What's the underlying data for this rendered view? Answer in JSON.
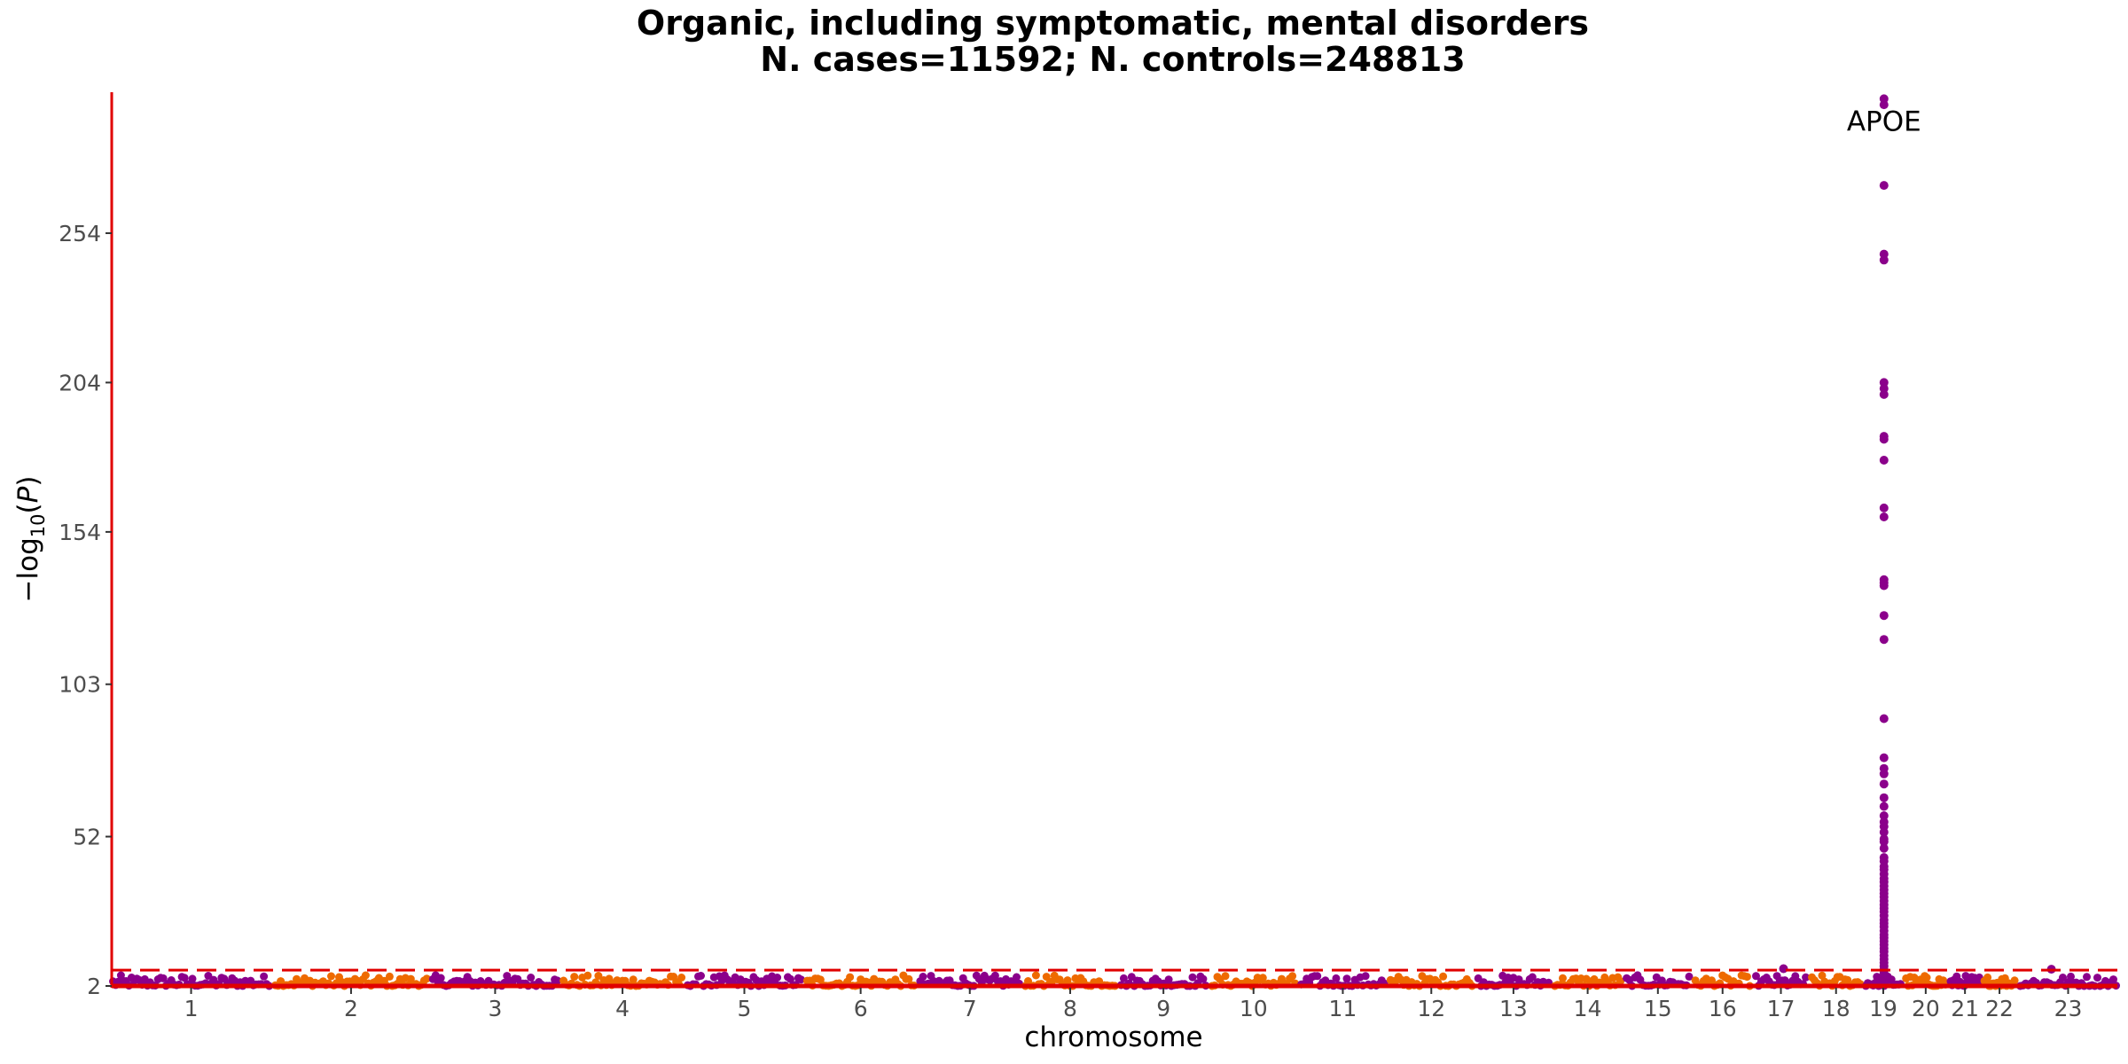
{
  "chart_data": {
    "type": "scatter",
    "subtype": "manhattan",
    "title_lines": [
      "Organic, including symptomatic, mental disorders",
      "N. cases=11592; N. controls=248813"
    ],
    "xlabel": "chromosome",
    "ylabel": "−log10(P)",
    "ylim": [
      2,
      300
    ],
    "yticks": [
      2,
      52,
      103,
      154,
      204,
      254
    ],
    "chromosomes": [
      "1",
      "2",
      "3",
      "4",
      "5",
      "6",
      "7",
      "8",
      "9",
      "10",
      "11",
      "12",
      "13",
      "14",
      "15",
      "16",
      "17",
      "18",
      "19",
      "20",
      "21",
      "22",
      "23"
    ],
    "chromosome_span": [
      1.0,
      0.97,
      0.8,
      0.76,
      0.73,
      0.69,
      0.64,
      0.58,
      0.55,
      0.54,
      0.54,
      0.53,
      0.46,
      0.43,
      0.41,
      0.36,
      0.33,
      0.32,
      0.23,
      0.26,
      0.19,
      0.2,
      0.62
    ],
    "colors": {
      "odd": "#8B008B",
      "even": "#EE6A00",
      "axis": "#E00000",
      "threshold": "#E00000"
    },
    "threshold": 7.3,
    "grid": false,
    "legend": "none",
    "peaks": [
      {
        "chromosome": "17",
        "pos": 0.55,
        "value": 7.8
      },
      {
        "chromosome": "23",
        "pos": 0.33,
        "value": 7.6
      }
    ],
    "apoe_locus": {
      "chromosome": "19",
      "pos": 0.52,
      "label": "APOE",
      "values": [
        299,
        297,
        270,
        247,
        245,
        204,
        202,
        200,
        186,
        185,
        178,
        162,
        159,
        138,
        137,
        136,
        126,
        118,
        91.5,
        78.4,
        74.8,
        73,
        69.6,
        65,
        62.1,
        59,
        56.9,
        55.4,
        53.5,
        51.2,
        50.3,
        48.1,
        45,
        43.8,
        42,
        41,
        39.5,
        38,
        36.8,
        35.5,
        34.2,
        33,
        31.8,
        30.5,
        29.2,
        28,
        26.9,
        25.5,
        24.1,
        23,
        21.8,
        20.5,
        19.2,
        18.1,
        17,
        15.8,
        14.6,
        13.5,
        12.2,
        11,
        9.8,
        8.6,
        7.5,
        6.4
      ]
    }
  }
}
